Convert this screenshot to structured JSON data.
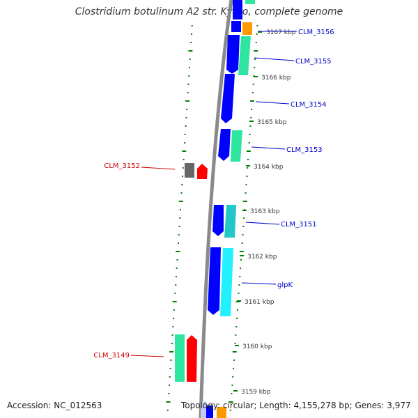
{
  "title": "Clostridium botulinum A2 str. Kyoto, complete genome",
  "accession": "Accession: NC_012563",
  "topology": "Topology: circular; Length: 4,155,278 bp; Genes: 3,977",
  "ticks": [
    "3167 kbp",
    "3166 kbp",
    "3165 kbp",
    "3164 kbp",
    "3163 kbp",
    "3162 kbp",
    "3161 kbp",
    "3160 kbp",
    "3159 kbp"
  ],
  "genes": [
    {
      "name": "CLM_3156",
      "strand": "forward",
      "color": "#0000ff"
    },
    {
      "name": "CLM_3155",
      "strand": "forward",
      "color": "#0000ff"
    },
    {
      "name": "CLM_3154",
      "strand": "forward",
      "color": "#0000ff"
    },
    {
      "name": "CLM_3153",
      "strand": "forward",
      "color": "#0000ff"
    },
    {
      "name": "CLM_3152",
      "strand": "reverse",
      "color": "#ff0000"
    },
    {
      "name": "CLM_3151",
      "strand": "forward",
      "color": "#0000ff"
    },
    {
      "name": "glpK",
      "strand": "forward",
      "color": "#0000ff"
    },
    {
      "name": "CLM_3149",
      "strand": "reverse",
      "color": "#ff0000"
    }
  ],
  "colors": {
    "backbone": "#888888",
    "forward_label": "#0000cc",
    "reverse_label": "#cc0000",
    "tick_marks": "#008000",
    "cds_forward": "#0000ff",
    "cds_reverse": "#ff0000",
    "feature_green": "#2ee6a0",
    "feature_teal": "#22c8c8",
    "feature_cyan": "#22f0ff",
    "feature_orange": "#ff9900",
    "feature_gray": "#666666"
  }
}
